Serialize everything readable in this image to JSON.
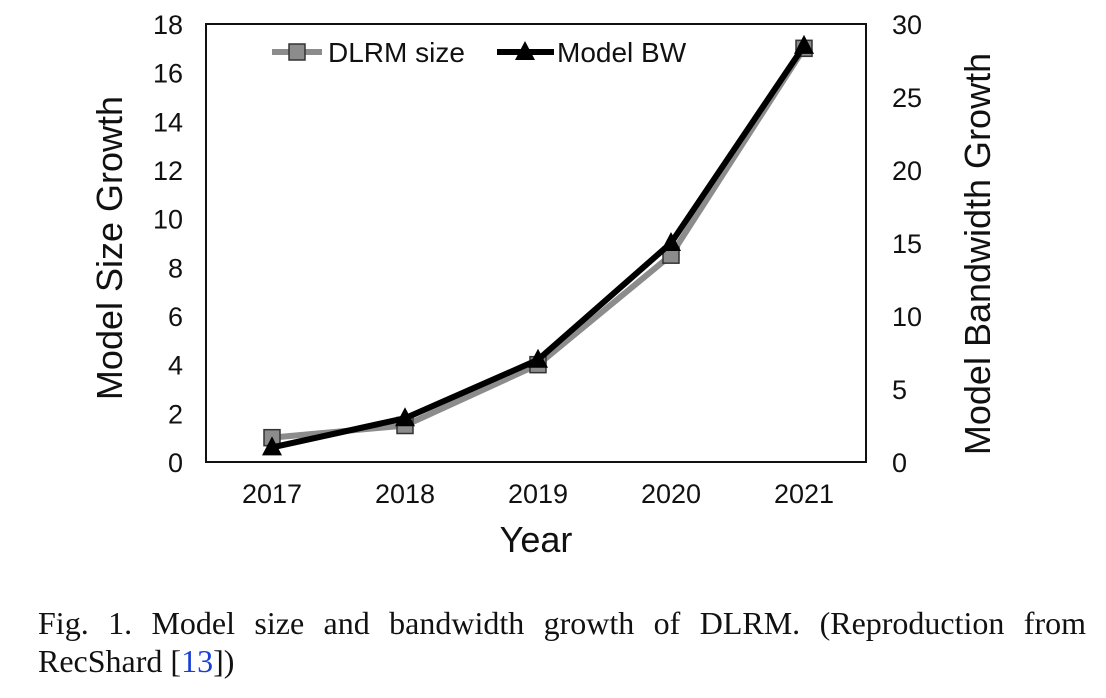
{
  "chart_data": {
    "type": "line",
    "categories": [
      "2017",
      "2018",
      "2019",
      "2020",
      "2021"
    ],
    "xlabel": "Year",
    "ylabel_left": "Model Size Growth",
    "ylabel_right": "Model Bandwidth Growth",
    "ylim_left": [
      0,
      18
    ],
    "ylim_right": [
      0,
      30
    ],
    "yticks_left": [
      "0",
      "2",
      "4",
      "6",
      "8",
      "10",
      "12",
      "14",
      "16",
      "18"
    ],
    "yticks_right": [
      "0",
      "5",
      "10",
      "15",
      "20",
      "25",
      "30"
    ],
    "grid": false,
    "legend_position": "top-left",
    "series": [
      {
        "name": "DLRM size",
        "axis": "left",
        "marker": "square",
        "color": "#8c8c8c",
        "values": [
          1.0,
          1.5,
          4.0,
          8.5,
          17.0
        ]
      },
      {
        "name": "Model BW",
        "axis": "right",
        "marker": "triangle",
        "color": "#000000",
        "values": [
          1.0,
          3.0,
          7.0,
          15.0,
          28.5
        ]
      }
    ]
  },
  "caption": {
    "line1": "Fig. 1.  Model size and bandwidth growth of DLRM. (Reproduction from",
    "line2_prefix": "RecShard [",
    "ref": "13",
    "line2_suffix": "])"
  }
}
